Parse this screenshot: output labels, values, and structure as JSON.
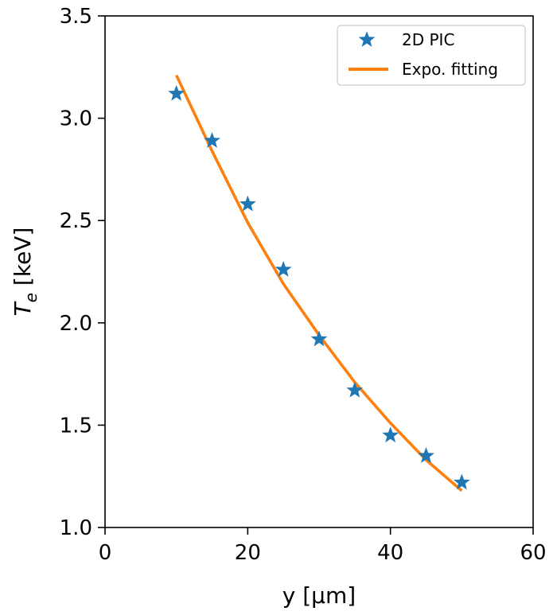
{
  "chart_data": {
    "type": "scatter",
    "xlabel": "y [μm]",
    "ylabel_main": "T",
    "ylabel_sub": "e",
    "ylabel_unit": " [keV]",
    "xlim": [
      0,
      60
    ],
    "ylim": [
      1.0,
      3.5
    ],
    "xticks": [
      0,
      20,
      40,
      60
    ],
    "xtick_labels": [
      "0",
      "20",
      "40",
      "60"
    ],
    "yticks": [
      1.0,
      1.5,
      2.0,
      2.5,
      3.0,
      3.5
    ],
    "ytick_labels": [
      "1.0",
      "1.5",
      "2.0",
      "2.5",
      "3.0",
      "3.5"
    ],
    "grid": false,
    "legend_position": "top-right",
    "series": [
      {
        "name": "2D PIC",
        "kind": "scatter",
        "marker": "star",
        "color": "#1f77b4",
        "x": [
          10,
          15,
          20,
          25,
          30,
          35,
          40,
          45,
          50
        ],
        "y": [
          3.12,
          2.89,
          2.58,
          2.26,
          1.92,
          1.67,
          1.45,
          1.35,
          1.22
        ]
      },
      {
        "name": "Expo. fitting",
        "kind": "line",
        "color": "#ff7f0e",
        "x": [
          10,
          15,
          20,
          25,
          30,
          35,
          40,
          45,
          50
        ],
        "y": [
          3.21,
          2.84,
          2.49,
          2.19,
          1.94,
          1.71,
          1.51,
          1.33,
          1.18
        ]
      }
    ]
  }
}
